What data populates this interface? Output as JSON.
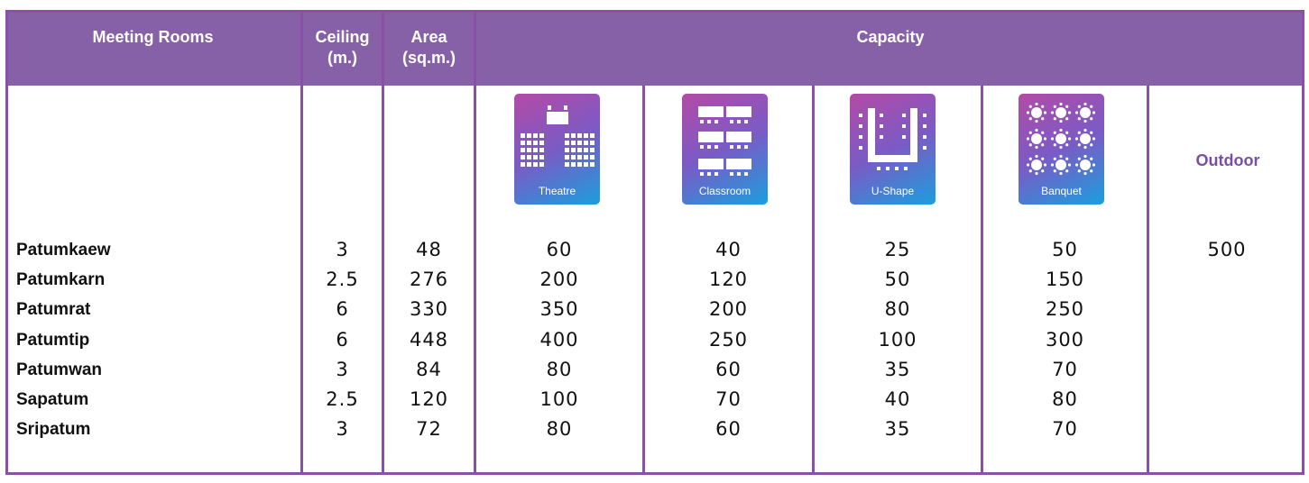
{
  "headers": {
    "meeting_rooms": "Meeting  Rooms",
    "ceiling_line1": "Ceiling",
    "ceiling_line2": "(m.)",
    "area_line1": "Area",
    "area_line2": "(sq.m.)",
    "capacity": "Capacity"
  },
  "layouts": {
    "theatre": "Theatre",
    "classroom": "Classroom",
    "ushape": "U-Shape",
    "banquet": "Banquet",
    "outdoor": "Outdoor"
  },
  "rows": [
    {
      "name": "Patumkaew",
      "ceiling": "3",
      "area": "48",
      "theatre": "60",
      "classroom": "40",
      "ushape": "25",
      "banquet": "50",
      "outdoor": "500"
    },
    {
      "name": "Patumkarn",
      "ceiling": "2.5",
      "area": "276",
      "theatre": "200",
      "classroom": "120",
      "ushape": "50",
      "banquet": "150",
      "outdoor": ""
    },
    {
      "name": "Patumrat",
      "ceiling": "6",
      "area": "330",
      "theatre": "350",
      "classroom": "200",
      "ushape": "80",
      "banquet": "250",
      "outdoor": ""
    },
    {
      "name": "Patumtip",
      "ceiling": "6",
      "area": "448",
      "theatre": "400",
      "classroom": "250",
      "ushape": "100",
      "banquet": "300",
      "outdoor": ""
    },
    {
      "name": "Patumwan",
      "ceiling": "3",
      "area": "84",
      "theatre": "80",
      "classroom": "60",
      "ushape": "35",
      "banquet": "70",
      "outdoor": ""
    },
    {
      "name": "Sapatum",
      "ceiling": "2.5",
      "area": "120",
      "theatre": "100",
      "classroom": "70",
      "ushape": "40",
      "banquet": "80",
      "outdoor": ""
    },
    {
      "name": "Sripatum",
      "ceiling": "3",
      "area": "72",
      "theatre": "80",
      "classroom": "60",
      "ushape": "35",
      "banquet": "70",
      "outdoor": ""
    }
  ],
  "icons": {
    "theatre": "theatre-layout-icon",
    "classroom": "classroom-layout-icon",
    "ushape": "u-shape-layout-icon",
    "banquet": "banquet-layout-icon"
  },
  "colors": {
    "header_bg": "#8761a8",
    "border": "#8a4fa6",
    "outdoor_text": "#7a4fa3"
  }
}
